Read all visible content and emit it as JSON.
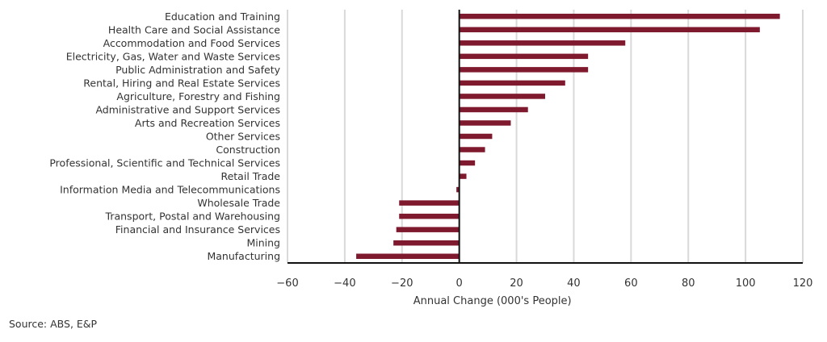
{
  "chart_data": {
    "type": "bar",
    "orientation": "horizontal",
    "title": "",
    "xlabel": "Annual Change (000's People)",
    "ylabel": "",
    "xlim": [
      -60,
      120
    ],
    "xticks": [
      -60,
      -40,
      -20,
      0,
      20,
      40,
      60,
      80,
      100,
      120
    ],
    "xtick_labels": [
      "−60",
      "−40",
      "−20",
      "0",
      "20",
      "40",
      "60",
      "80",
      "100",
      "120"
    ],
    "grid": true,
    "legend": null,
    "bar_color": "#7f1a2e",
    "categories": [
      "Education and Training",
      "Health Care and Social Assistance",
      "Accommodation and Food Services",
      "Electricity, Gas, Water and Waste Services",
      "Public Administration and Safety",
      "Rental, Hiring and Real Estate Services",
      "Agriculture, Forestry and Fishing",
      "Administrative and Support Services",
      "Arts and Recreation Services",
      "Other Services",
      "Construction",
      "Professional, Scientific and Technical Services",
      "Retail Trade",
      "Information Media and Telecommunications",
      "Wholesale Trade",
      "Transport, Postal and Warehousing",
      "Financial and Insurance Services",
      "Mining",
      "Manufacturing"
    ],
    "values": [
      112,
      105,
      58,
      45,
      45,
      37,
      30,
      24,
      18,
      11.5,
      9,
      5.5,
      2.5,
      -1,
      -21,
      -21,
      -22,
      -23,
      -36
    ]
  },
  "source": "Source: ABS, E&P"
}
